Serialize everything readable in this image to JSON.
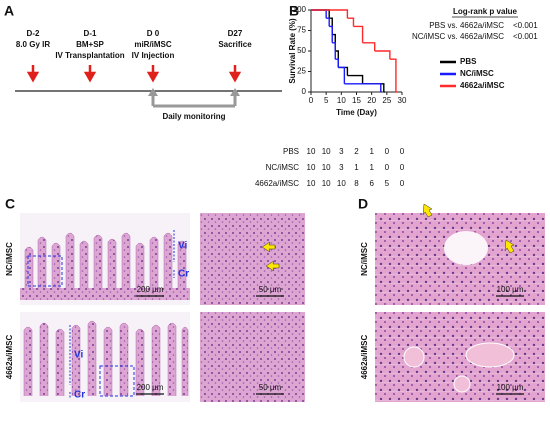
{
  "panel_a": {
    "letter": "A",
    "events": [
      {
        "day": "D-2",
        "lines": [
          "8.0 Gy IR"
        ]
      },
      {
        "day": "D-1",
        "lines": [
          "BM+SP",
          "IV Transplantation"
        ]
      },
      {
        "day": "D 0",
        "lines": [
          "miR/iMSC",
          "IV Injection"
        ]
      },
      {
        "day": "D27",
        "lines": [
          "Sacrifice"
        ]
      }
    ],
    "bracket_label": "Daily monitoring"
  },
  "chart_data": {
    "type": "step",
    "letter": "B",
    "xlabel": "Time (Day)",
    "ylabel": "Survival Rate (%)",
    "xlim": [
      0,
      30
    ],
    "xticks": [
      0,
      5,
      10,
      15,
      20,
      25,
      30
    ],
    "ylim": [
      0,
      100
    ],
    "yticks": [
      0,
      25,
      50,
      75,
      100
    ],
    "legend": "right",
    "series": [
      {
        "name": "PBS",
        "color": "#000000",
        "x": [
          0,
          6,
          7,
          8,
          9,
          12,
          17,
          24
        ],
        "values": [
          100,
          90,
          70,
          50,
          30,
          20,
          10,
          0
        ]
      },
      {
        "name": "NC/iMSC",
        "color": "#1a1aff",
        "x": [
          0,
          5,
          6,
          7,
          8,
          9,
          11,
          23
        ],
        "values": [
          100,
          90,
          80,
          60,
          40,
          30,
          10,
          0
        ]
      },
      {
        "name": "4662a/iMSC",
        "color": "#ff2a2a",
        "x": [
          0,
          12,
          14,
          17,
          21,
          26,
          28
        ],
        "values": [
          100,
          90,
          80,
          60,
          50,
          40,
          0
        ]
      }
    ],
    "annotation": {
      "title": "Log-rank p value",
      "rows": [
        {
          "label": "PBS vs. 4662a/iMSC",
          "p": "<0.001"
        },
        {
          "label": "NC/iMSC vs. 4662a/iMSC",
          "p": "<0.001"
        }
      ]
    }
  },
  "risk_table": {
    "rows": [
      {
        "name": "PBS",
        "counts": [
          10,
          10,
          3,
          2,
          1,
          0,
          0
        ]
      },
      {
        "name": "NC/iMSC",
        "counts": [
          10,
          10,
          3,
          1,
          1,
          0,
          0
        ]
      },
      {
        "name": "4662a/iMSC",
        "counts": [
          10,
          10,
          10,
          8,
          6,
          5,
          0
        ]
      }
    ]
  },
  "panel_c": {
    "letter": "C",
    "groups": [
      "NC/iMSC",
      "4662a/iMSC"
    ],
    "villus": "Vi",
    "crypt": "Cr",
    "scale_low": "200 µm",
    "scale_high": "50 µm"
  },
  "panel_d": {
    "letter": "D",
    "groups": [
      "NC/iMSC",
      "4662a/iMSC"
    ],
    "scale": "100 µm"
  }
}
